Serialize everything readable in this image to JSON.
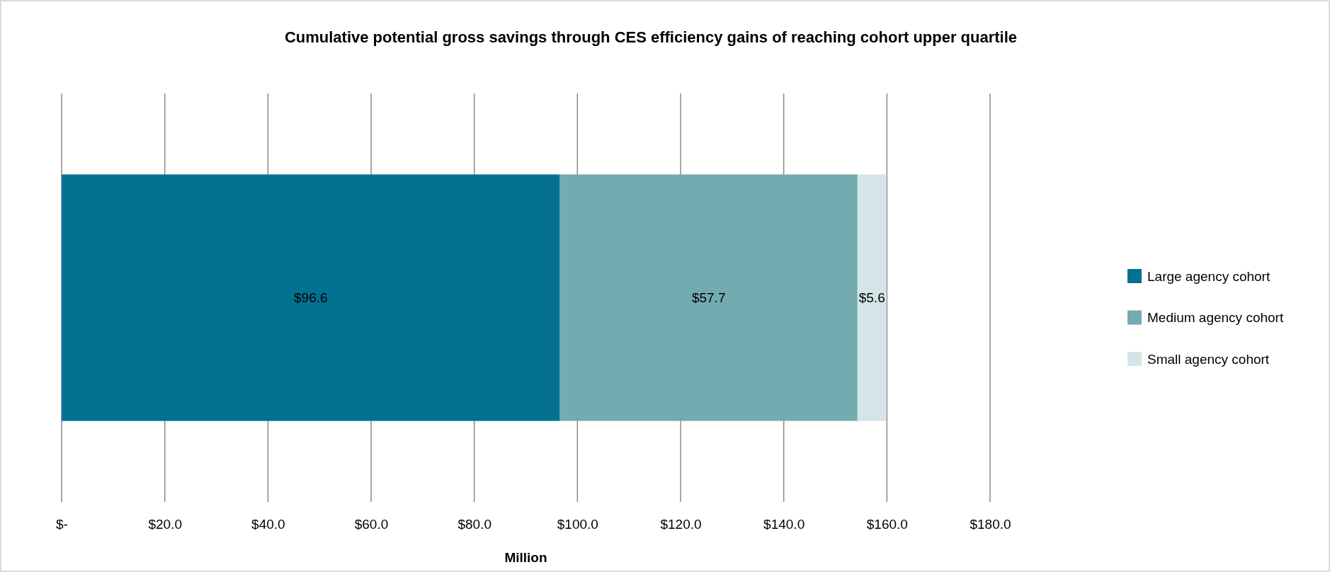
{
  "chart_data": {
    "type": "bar",
    "title": "Cumulative potential gross savings through CES efficiency gains of reaching cohort upper quartile",
    "xlabel": "Million",
    "orientation": "horizontal",
    "stacked": true,
    "categories": [
      null
    ],
    "series": [
      {
        "name": "Large agency cohort",
        "color": "#03718f",
        "values": [
          96.6
        ],
        "value_labels": [
          "$96.6"
        ]
      },
      {
        "name": "Medium agency cohort",
        "color": "#74abb0",
        "values": [
          57.7
        ],
        "value_labels": [
          "$57.7"
        ]
      },
      {
        "name": "Small agency cohort",
        "color": "#d3e5e6",
        "values": [
          5.6
        ],
        "value_labels": [
          "$5.6"
        ]
      }
    ],
    "xlim": [
      0,
      180
    ],
    "xticks": [
      {
        "value": 0,
        "label": "$-"
      },
      {
        "value": 20,
        "label": "$20.0"
      },
      {
        "value": 40,
        "label": "$40.0"
      },
      {
        "value": 60,
        "label": "$60.0"
      },
      {
        "value": 80,
        "label": "$80.0"
      },
      {
        "value": 100,
        "label": "$100.0"
      },
      {
        "value": 120,
        "label": "$120.0"
      },
      {
        "value": 140,
        "label": "$140.0"
      },
      {
        "value": 160,
        "label": "$160.0"
      },
      {
        "value": 180,
        "label": "$180.0"
      }
    ],
    "grid": "x",
    "legend": "right"
  }
}
